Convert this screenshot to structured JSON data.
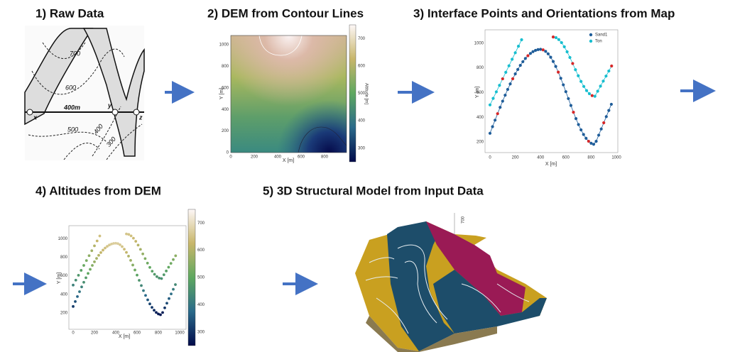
{
  "titles": [
    "1)   Raw Data",
    "2) DEM from Contour Lines",
    "3) Interface Points and Orientations from Map",
    "4) Altitudes from DEM",
    "5) 3D Structural Model from Input Data"
  ],
  "raw_data": {
    "contour_labels": [
      "700",
      "600",
      "500",
      "400",
      "300"
    ],
    "section_label": "400m",
    "points": [
      "x",
      "y",
      "z"
    ]
  },
  "dem": {
    "xticks": [
      "0",
      "200",
      "400",
      "600",
      "800"
    ],
    "yticks": [
      "0",
      "200",
      "400",
      "600",
      "800",
      "1000"
    ],
    "x_label": "X [m]",
    "y_label": "Y [m]",
    "colorbar_ticks": [
      "300",
      "400",
      "500",
      "600",
      "700"
    ],
    "colorbar_label": "Altitude [m]"
  },
  "interface_map": {
    "legend": [
      "Sand1",
      "Ton"
    ],
    "xticks": [
      "0",
      "200",
      "400",
      "600",
      "800",
      "1000"
    ],
    "yticks": [
      "200",
      "400",
      "600",
      "800",
      "1000"
    ],
    "x_label": "X [m]",
    "y_label": "Y [m]"
  },
  "altitudes": {
    "xticks": [
      "0",
      "200",
      "400",
      "600",
      "800",
      "1000"
    ],
    "yticks": [
      "200",
      "400",
      "600",
      "800",
      "1000"
    ],
    "x_label": "X [m]",
    "y_label": "Y [m]",
    "colorbar_ticks": [
      "300",
      "400",
      "500",
      "600",
      "700"
    ]
  },
  "model_3d": {
    "axis_label": "700"
  }
}
